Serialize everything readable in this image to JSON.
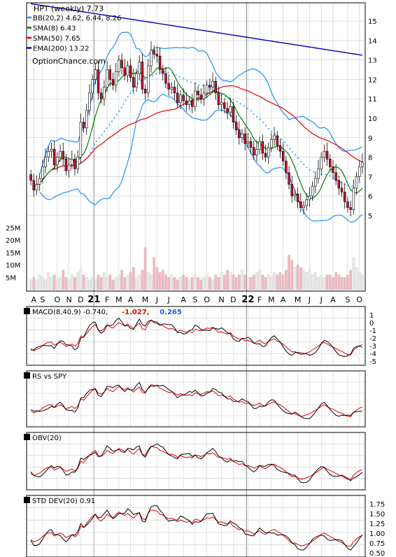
{
  "chart_data": [
    {
      "type": "candlestick",
      "title": "HPT (weekly) 7.73",
      "watermark": "OptionChance.com",
      "legend": [
        {
          "key": "bb",
          "label": "BB(20,2) 4.62, 6.44, 8.26",
          "color": "#1e90ff"
        },
        {
          "key": "sma8",
          "label": "SMA(8) 6.43",
          "color": "#008000"
        },
        {
          "key": "sma50",
          "label": "SMA(50) 7.65",
          "color": "#e60000"
        },
        {
          "key": "ema200",
          "label": "EMA(200) 13.22",
          "color": "#0000b4"
        }
      ],
      "ylim": [
        4.2,
        15.8
      ],
      "yticks": [
        5,
        6,
        7,
        8,
        9,
        10,
        11,
        12,
        13,
        14,
        15
      ],
      "volume_ticks": [
        "25M",
        "20M",
        "15M",
        "10M",
        "5M"
      ],
      "volume_ylim": [
        0,
        26
      ],
      "x_labels": [
        {
          "label": "A",
          "t": 0.1
        },
        {
          "label": "S",
          "t": 0.05
        },
        {
          "label": "O",
          "t": 0.1
        },
        {
          "label": "N",
          "t": 0.15
        },
        {
          "label": "D",
          "t": 0.2
        },
        {
          "label": "21",
          "t": 0.5
        },
        {
          "label": "F",
          "t": 0.0
        },
        {
          "label": "M",
          "t": 0.0
        },
        {
          "label": "A",
          "t": 0.0
        },
        {
          "label": "M",
          "t": 0.0
        },
        {
          "label": "J",
          "t": 0.0
        },
        {
          "label": "J",
          "t": 0.0
        },
        {
          "label": "A",
          "t": 0.0
        },
        {
          "label": "S",
          "t": 0.0
        },
        {
          "label": "O",
          "t": 0.0
        },
        {
          "label": "N",
          "t": 0.0
        },
        {
          "label": "D",
          "t": 0.0
        },
        {
          "label": "22",
          "t": 0.0
        },
        {
          "label": "F",
          "t": 0.0
        },
        {
          "label": "M",
          "t": 0.0
        },
        {
          "label": "A",
          "t": 0.0
        },
        {
          "label": "M",
          "t": 0.0
        },
        {
          "label": "J",
          "t": 0.0
        },
        {
          "label": "J",
          "t": 0.0
        },
        {
          "label": "A",
          "t": 0.0
        },
        {
          "label": "S",
          "t": 0.0
        },
        {
          "label": "O",
          "t": 0.0
        }
      ],
      "x_label_weeks": [
        1,
        4,
        9,
        13,
        17,
        21.5,
        26,
        30,
        34,
        39,
        43,
        47,
        52,
        56,
        60,
        65,
        69,
        74,
        78,
        82,
        86,
        91,
        95,
        99,
        103,
        108,
        112
      ],
      "year_marks": [
        21.5,
        73.5
      ],
      "close": [
        6.8,
        6.3,
        6.6,
        6.9,
        7.5,
        8.0,
        8.3,
        8.4,
        7.6,
        8.0,
        8.3,
        7.9,
        7.3,
        7.6,
        7.9,
        7.4,
        8.0,
        9.8,
        9.5,
        10.4,
        11.3,
        12.0,
        12.5,
        11.3,
        11.0,
        11.6,
        12.5,
        12.0,
        11.7,
        12.4,
        13.0,
        12.6,
        12.2,
        12.7,
        12.1,
        11.6,
        12.3,
        12.9,
        11.5,
        11.3,
        12.7,
        13.5,
        13.3,
        13.2,
        12.5,
        12.3,
        11.8,
        11.5,
        11.6,
        11.3,
        10.8,
        11.2,
        10.9,
        10.7,
        10.9,
        10.6,
        11.4,
        11.2,
        11.0,
        11.3,
        11.7,
        11.6,
        11.9,
        11.3,
        10.7,
        10.8,
        10.5,
        10.3,
        10.6,
        9.8,
        9.4,
        9.0,
        9.2,
        8.7,
        8.8,
        8.5,
        8.1,
        8.4,
        8.8,
        8.2,
        8.0,
        8.5,
        8.9,
        9.1,
        8.6,
        8.3,
        7.8,
        7.2,
        6.6,
        6.0,
        6.1,
        5.7,
        5.4,
        5.5,
        5.8,
        6.0,
        6.5,
        6.9,
        7.4,
        8.0,
        8.3,
        7.9,
        7.5,
        7.2,
        6.8,
        6.4,
        6.2,
        5.7,
        5.4,
        5.3,
        6.4,
        7.0,
        7.5,
        7.73
      ],
      "volume": [
        4,
        5,
        4,
        6,
        5,
        4,
        7,
        5,
        6,
        4,
        5,
        8,
        5,
        4,
        6,
        5,
        7,
        8,
        6,
        5,
        4,
        5,
        4,
        6,
        5,
        7,
        5,
        6,
        4,
        5,
        6,
        8,
        5,
        6,
        7,
        9,
        5,
        6,
        8,
        17,
        7,
        6,
        13,
        9,
        7,
        8,
        6,
        5,
        6,
        5,
        4,
        5,
        6,
        5,
        4,
        5,
        6,
        5,
        4,
        5,
        6,
        5,
        4,
        6,
        5,
        7,
        6,
        8,
        7,
        6,
        5,
        6,
        8,
        6,
        5,
        5,
        6,
        7,
        8,
        6,
        5,
        6,
        5,
        7,
        6,
        7,
        6,
        8,
        14,
        12,
        9,
        10,
        9,
        8,
        7,
        8,
        6,
        7,
        5,
        6,
        5,
        6,
        6,
        5,
        7,
        6,
        5,
        5,
        6,
        8,
        13,
        9,
        7,
        6
      ],
      "indicator_panels": [
        {
          "label": "MACD(8,40,9)",
          "value": "-0.740,",
          "extra": [
            {
              "text": "-1.027,",
              "color": "#e60000"
            },
            {
              "text": "0.265",
              "color": "#1e60d0"
            }
          ],
          "yticks": [
            "1",
            "0",
            "-1",
            "-2",
            "-3",
            "-4",
            "-5"
          ]
        },
        {
          "label": "RS vs SPY",
          "value": "",
          "extra": [],
          "yticks": []
        },
        {
          "label": "OBV(20)",
          "value": "",
          "extra": [],
          "yticks": []
        },
        {
          "label": "STD DEV(20)",
          "value": "0.91",
          "extra": [],
          "yticks": [
            "1.75",
            "1.50",
            "1.25",
            "1.00",
            "0.75",
            "0.50"
          ]
        }
      ],
      "colors": {
        "up": "#ffffff",
        "down": "#c8102e",
        "volume": "#f2b6c0",
        "grid": "#c8c8c8",
        "frame": "#000000"
      }
    }
  ]
}
